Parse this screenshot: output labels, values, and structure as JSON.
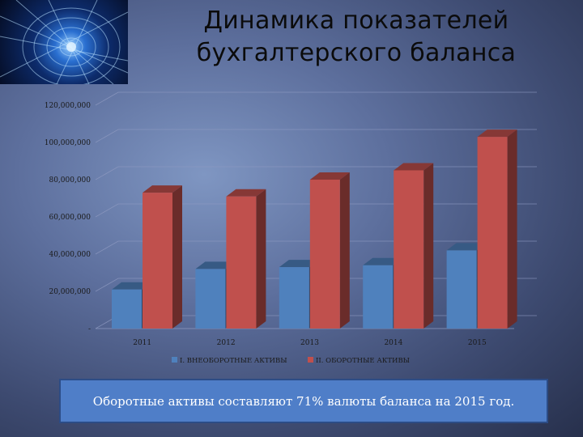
{
  "title": {
    "line1": "Динамика показателей",
    "line2": "бухгалтерского баланса"
  },
  "chart_data": {
    "type": "bar",
    "categories": [
      "2011",
      "2012",
      "2013",
      "2014",
      "2015"
    ],
    "series": [
      {
        "name": "I. ВНЕОБОРОТНЫЕ АКТИВЫ",
        "values": [
          21000000,
          32000000,
          33000000,
          34000000,
          42000000
        ],
        "color": "#4f81bd"
      },
      {
        "name": "II. ОБОРОТНЫЕ АКТИВЫ",
        "values": [
          73000000,
          71000000,
          80000000,
          85000000,
          103000000
        ],
        "color": "#c0504d"
      }
    ],
    "yticks": [
      "-",
      "20,000,000",
      "40,000,000",
      "60,000,000",
      "80,000,000",
      "100,000,000",
      "120,000,000"
    ],
    "ylim": [
      0,
      120000000
    ],
    "grid": true,
    "legend": "bottom",
    "style": "3d"
  },
  "caption": "Оборотные активы составляют 71% валюты баланса на 2015 год."
}
